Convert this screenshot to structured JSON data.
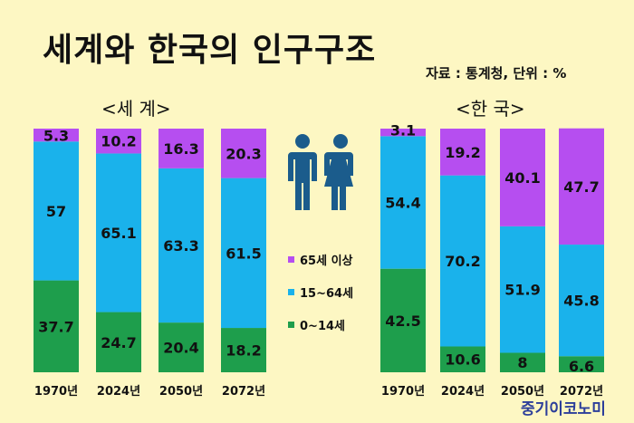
{
  "title": "세계와 한국의 인구구조",
  "source": "자료 : 통계청, 단위 : %",
  "brand": "중기이코노미",
  "colors": {
    "senior": "#b64ef0",
    "working": "#1ab2eb",
    "child": "#1e9e4c"
  },
  "legend": [
    {
      "label": "65세 이상",
      "color": "#b64ef0"
    },
    {
      "label": "15~64세",
      "color": "#1ab2eb"
    },
    {
      "label": "0~14세",
      "color": "#1e9e4c"
    }
  ],
  "icons": [
    "male-figure-icon",
    "female-figure-icon"
  ],
  "chart_data": [
    {
      "type": "bar",
      "stacked": true,
      "percent": true,
      "title": "<세 계>",
      "categories": [
        "1970년",
        "2024년",
        "2050년",
        "2072년"
      ],
      "series": [
        {
          "name": "0~14세",
          "values": [
            37.7,
            24.7,
            20.4,
            18.2
          ]
        },
        {
          "name": "15~64세",
          "values": [
            57,
            65.1,
            63.3,
            61.5
          ]
        },
        {
          "name": "65세 이상",
          "values": [
            5.3,
            10.2,
            16.3,
            20.3
          ]
        }
      ]
    },
    {
      "type": "bar",
      "stacked": true,
      "percent": true,
      "title": "<한 국>",
      "categories": [
        "1970년",
        "2024년",
        "2050년",
        "2072년"
      ],
      "series": [
        {
          "name": "0~14세",
          "values": [
            42.5,
            10.6,
            8,
            6.6
          ]
        },
        {
          "name": "15~64세",
          "values": [
            54.4,
            70.2,
            51.9,
            45.8
          ]
        },
        {
          "name": "65세 이상",
          "values": [
            3.1,
            19.2,
            40.1,
            47.7
          ]
        }
      ]
    }
  ]
}
